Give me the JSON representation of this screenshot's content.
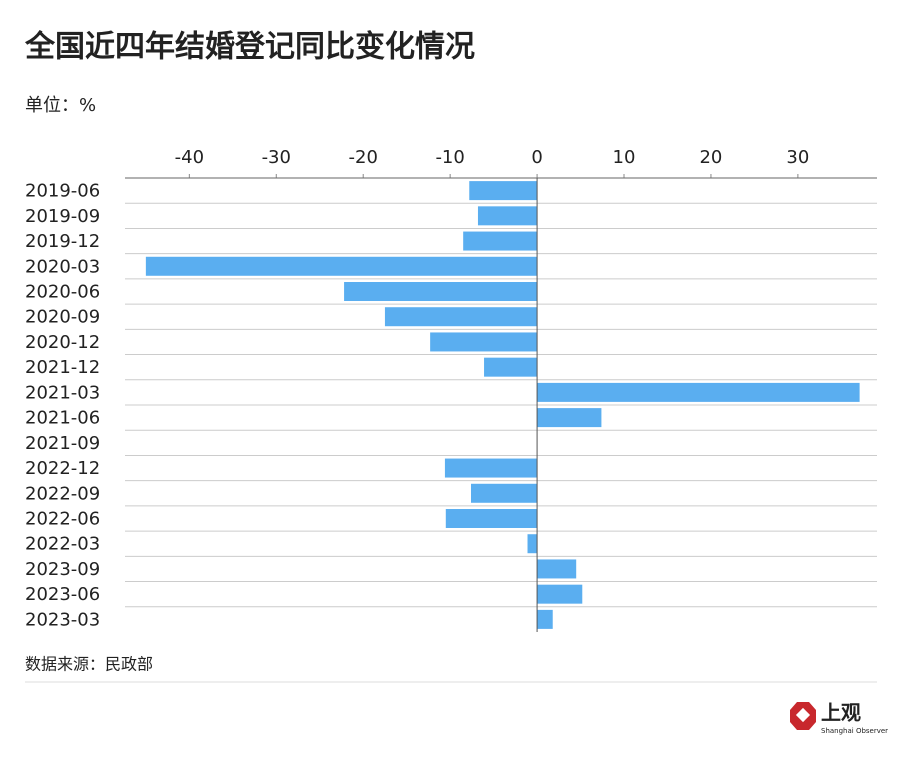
{
  "chart_data": {
    "type": "hbar",
    "title": "全国近四年结婚登记同比变化情况",
    "subtitle": "单位：%",
    "categories": [
      "2019-06",
      "2019-09",
      "2019-12",
      "2020-03",
      "2020-06",
      "2020-09",
      "2020-12",
      "2021-12",
      "2021-03",
      "2021-06",
      "2021-09",
      "2022-12",
      "2022-09",
      "2022-06",
      "2022-03",
      "2023-09",
      "2023-06",
      "2023-03"
    ],
    "values": [
      -7.8,
      -6.8,
      -8.5,
      -45,
      -22.2,
      -17.5,
      -12.3,
      -6.1,
      37.1,
      7.4,
      0,
      -10.6,
      -7.6,
      -10.5,
      -1.1,
      4.5,
      5.2,
      1.8
    ],
    "color": "#5aaef0",
    "xlim": [
      -47.4,
      39.1
    ],
    "xticks": [
      -40,
      -30,
      -20,
      -10,
      0,
      10,
      20,
      30
    ]
  },
  "footer": {
    "source": "数据来源：民政部",
    "brand": "上观",
    "brand_en": "Shanghai Observer"
  }
}
